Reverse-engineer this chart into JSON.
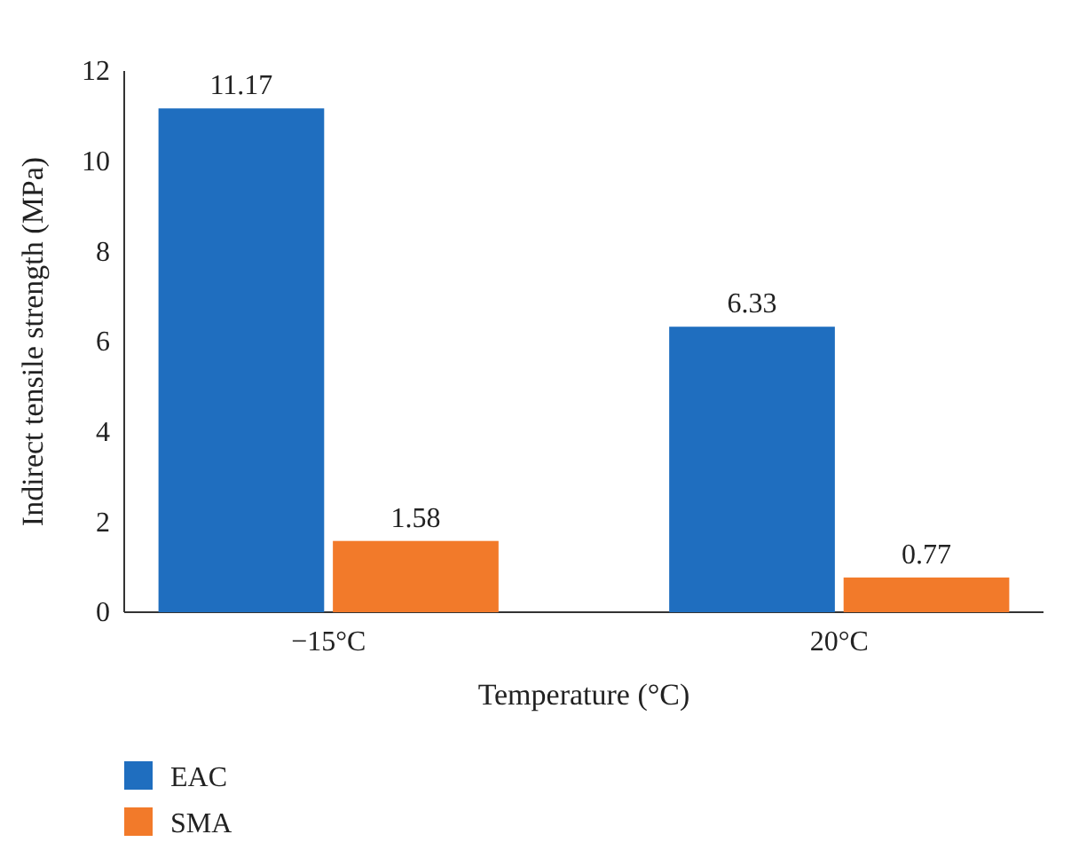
{
  "chart_data": {
    "type": "bar",
    "xlabel": "Temperature (°C)",
    "ylabel": "Indirect tensile strength (MPa)",
    "categories": [
      "−15°C",
      "20°C"
    ],
    "series": [
      {
        "name": "EAC",
        "color": "#1f6ebf",
        "values": [
          11.17,
          6.33
        ]
      },
      {
        "name": "SMA",
        "color": "#f27a2a",
        "values": [
          1.58,
          0.77
        ]
      }
    ],
    "ylim": [
      0,
      12
    ],
    "yticks": [
      0,
      2,
      4,
      6,
      8,
      10,
      12
    ],
    "data_labels": true,
    "grid": false,
    "legend": "bottom"
  }
}
